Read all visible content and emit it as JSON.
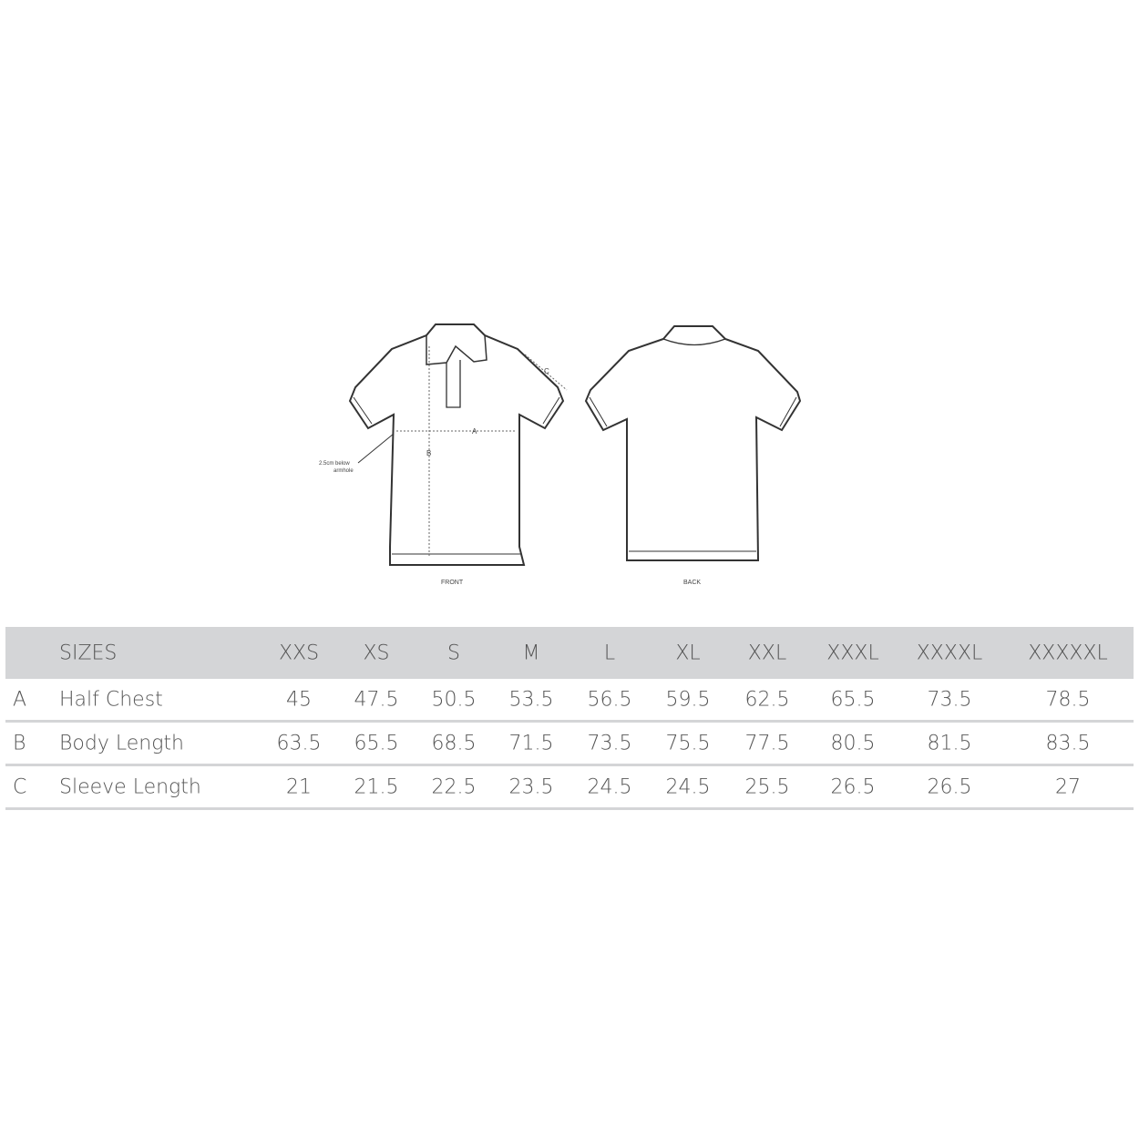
{
  "diagram": {
    "front_label": "FRONT",
    "back_label": "BACK",
    "measure_labels": {
      "a": "A",
      "b": "B",
      "c": "C"
    },
    "note": [
      "2.5cm below",
      "armhole"
    ]
  },
  "table": {
    "header_label": "SIZES",
    "sizes": [
      "XXS",
      "XS",
      "S",
      "M",
      "L",
      "XL",
      "XXL",
      "XXXL",
      "XXXXL",
      "XXXXXL"
    ],
    "rows": [
      {
        "key": "A",
        "name": "Half Chest",
        "values": [
          "45",
          "47.5",
          "50.5",
          "53.5",
          "56.5",
          "59.5",
          "62.5",
          "65.5",
          "73.5",
          "78.5"
        ]
      },
      {
        "key": "B",
        "name": "Body Length",
        "values": [
          "63.5",
          "65.5",
          "68.5",
          "71.5",
          "73.5",
          "75.5",
          "77.5",
          "80.5",
          "81.5",
          "83.5"
        ]
      },
      {
        "key": "C",
        "name": "Sleeve Length",
        "values": [
          "21",
          "21.5",
          "22.5",
          "23.5",
          "24.5",
          "24.5",
          "25.5",
          "26.5",
          "26.5",
          "27"
        ]
      }
    ]
  },
  "colors": {
    "header_bg": "#d4d5d7",
    "text": "#555555",
    "line": "#333333"
  }
}
